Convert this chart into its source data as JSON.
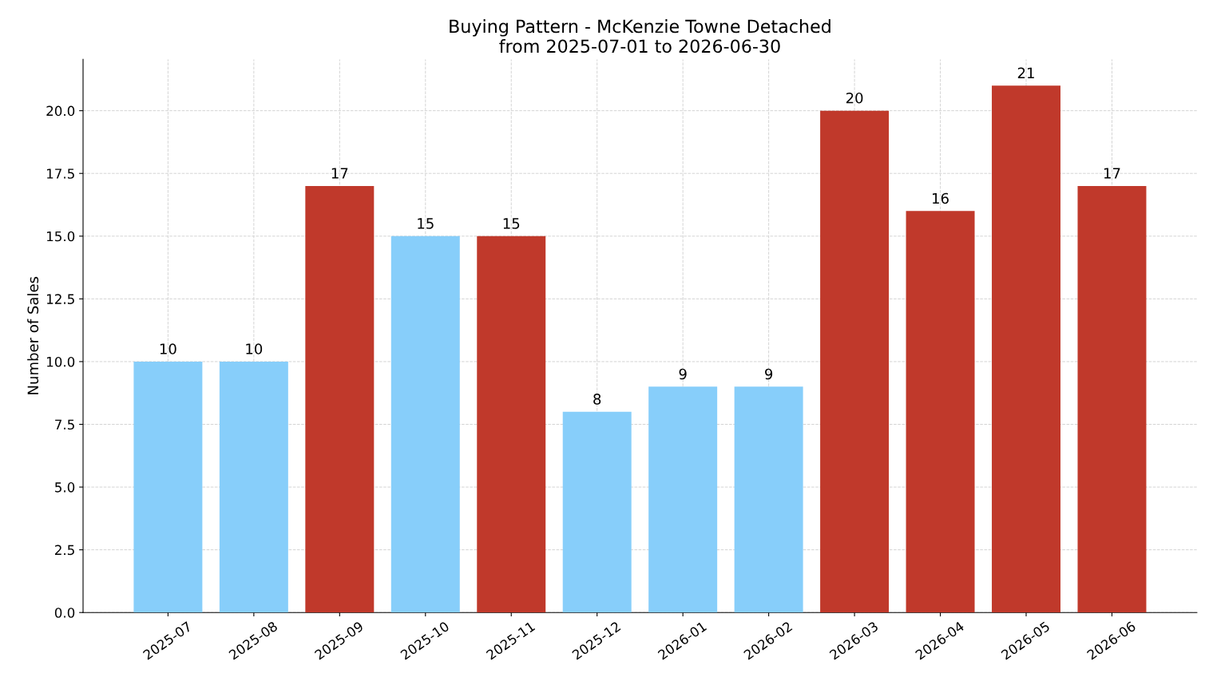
{
  "chart_data": {
    "type": "bar",
    "title": "Buying Pattern - McKenzie Towne Detached\nfrom 2025-07-01 to 2026-06-30",
    "ylabel": "Number of Sales",
    "categories": [
      "2025-07",
      "2025-08",
      "2025-09",
      "2025-10",
      "2025-11",
      "2025-12",
      "2026-01",
      "2026-02",
      "2026-03",
      "2026-04",
      "2026-05",
      "2026-06"
    ],
    "values": [
      10,
      10,
      17,
      15,
      15,
      8,
      9,
      9,
      20,
      16,
      21,
      17
    ],
    "colors": [
      "#87cefa",
      "#87cefa",
      "#c0392b",
      "#87cefa",
      "#c0392b",
      "#87cefa",
      "#87cefa",
      "#87cefa",
      "#c0392b",
      "#c0392b",
      "#c0392b",
      "#c0392b"
    ],
    "ylim": [
      0,
      22.05
    ],
    "yticks": [
      {
        "value": 0,
        "label": "0.0"
      },
      {
        "value": 2.5,
        "label": "2.5"
      },
      {
        "value": 5,
        "label": "5.0"
      },
      {
        "value": 7.5,
        "label": "7.5"
      },
      {
        "value": 10,
        "label": "10.0"
      },
      {
        "value": 12.5,
        "label": "12.5"
      },
      {
        "value": 15,
        "label": "15.0"
      },
      {
        "value": 17.5,
        "label": "17.5"
      },
      {
        "value": 20,
        "label": "20.0"
      }
    ],
    "data_labels": true,
    "grid": true
  }
}
